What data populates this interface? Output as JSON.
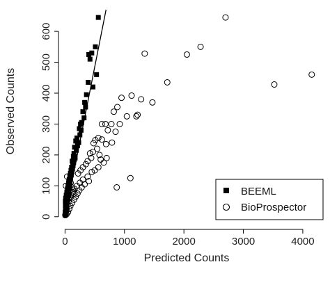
{
  "chart_data": {
    "type": "scatter",
    "title": "",
    "xlabel": "Predicted Counts",
    "ylabel": "Observed Counts",
    "xlim": [
      -40,
      4200
    ],
    "ylim": [
      -5,
      670
    ],
    "x_ticks": [
      0,
      1000,
      2000,
      3000,
      4000
    ],
    "y_ticks": [
      0,
      100,
      200,
      300,
      400,
      500,
      600
    ],
    "legend_position": "bottom-right",
    "grid": false,
    "fit_line": {
      "series": "BEEML",
      "x": [
        0,
        690
      ],
      "y": [
        0,
        670
      ]
    },
    "series": [
      {
        "name": "BEEML",
        "marker": "filled-square",
        "color": "#000000",
        "points": [
          [
            560,
            645
          ],
          [
            510,
            550
          ],
          [
            450,
            530
          ],
          [
            400,
            525
          ],
          [
            420,
            510
          ],
          [
            530,
            460
          ],
          [
            470,
            420
          ],
          [
            390,
            435
          ],
          [
            360,
            395
          ],
          [
            330,
            370
          ],
          [
            345,
            355
          ],
          [
            300,
            340
          ],
          [
            320,
            320
          ],
          [
            280,
            305
          ],
          [
            260,
            300
          ],
          [
            240,
            285
          ],
          [
            270,
            280
          ],
          [
            250,
            265
          ],
          [
            200,
            255
          ],
          [
            180,
            245
          ],
          [
            230,
            240
          ],
          [
            210,
            230
          ],
          [
            160,
            225
          ],
          [
            190,
            215
          ],
          [
            150,
            205
          ],
          [
            140,
            195
          ],
          [
            170,
            190
          ],
          [
            120,
            180
          ],
          [
            130,
            170
          ],
          [
            110,
            160
          ],
          [
            100,
            150
          ],
          [
            90,
            140
          ],
          [
            80,
            130
          ],
          [
            70,
            120
          ],
          [
            60,
            110
          ],
          [
            50,
            100
          ],
          [
            40,
            90
          ],
          [
            30,
            80
          ],
          [
            20,
            70
          ],
          [
            10,
            60
          ],
          [
            5,
            50
          ],
          [
            15,
            40
          ],
          [
            25,
            30
          ],
          [
            8,
            20
          ],
          [
            12,
            10
          ],
          [
            3,
            5
          ],
          [
            35,
            65
          ],
          [
            45,
            85
          ],
          [
            55,
            95
          ],
          [
            65,
            75
          ],
          [
            75,
            105
          ],
          [
            85,
            115
          ],
          [
            95,
            125
          ],
          [
            105,
            135
          ],
          [
            115,
            145
          ],
          [
            125,
            155
          ],
          [
            135,
            165
          ],
          [
            145,
            175
          ],
          [
            155,
            185
          ],
          [
            165,
            195
          ],
          [
            20,
            25
          ],
          [
            30,
            45
          ],
          [
            40,
            55
          ],
          [
            50,
            60
          ],
          [
            60,
            70
          ],
          [
            70,
            90
          ],
          [
            80,
            100
          ],
          [
            2,
            15
          ],
          [
            6,
            35
          ],
          [
            18,
            50
          ]
        ]
      },
      {
        "name": "BioProspector",
        "marker": "open-circle",
        "color": "#000000",
        "points": [
          [
            2700,
            645
          ],
          [
            2280,
            550
          ],
          [
            2050,
            525
          ],
          [
            1340,
            528
          ],
          [
            4150,
            460
          ],
          [
            3520,
            428
          ],
          [
            1720,
            435
          ],
          [
            1470,
            370
          ],
          [
            1280,
            380
          ],
          [
            1120,
            392
          ],
          [
            950,
            385
          ],
          [
            880,
            355
          ],
          [
            1220,
            330
          ],
          [
            1200,
            325
          ],
          [
            1040,
            325
          ],
          [
            820,
            340
          ],
          [
            920,
            300
          ],
          [
            780,
            300
          ],
          [
            680,
            300
          ],
          [
            620,
            300
          ],
          [
            560,
            255
          ],
          [
            620,
            250
          ],
          [
            510,
            248
          ],
          [
            480,
            238
          ],
          [
            720,
            280
          ],
          [
            850,
            275
          ],
          [
            790,
            240
          ],
          [
            690,
            235
          ],
          [
            540,
            220
          ],
          [
            470,
            210
          ],
          [
            420,
            205
          ],
          [
            580,
            200
          ],
          [
            650,
            175
          ],
          [
            600,
            185
          ],
          [
            440,
            190
          ],
          [
            380,
            180
          ],
          [
            350,
            170
          ],
          [
            300,
            160
          ],
          [
            260,
            150
          ],
          [
            220,
            140
          ],
          [
            500,
            150
          ],
          [
            380,
            130
          ],
          [
            300,
            120
          ],
          [
            250,
            110
          ],
          [
            200,
            100
          ],
          [
            160,
            90
          ],
          [
            130,
            80
          ],
          [
            100,
            70
          ],
          [
            80,
            60
          ],
          [
            60,
            50
          ],
          [
            40,
            40
          ],
          [
            30,
            30
          ],
          [
            20,
            20
          ],
          [
            10,
            10
          ],
          [
            5,
            5
          ],
          [
            1100,
            125
          ],
          [
            870,
            95
          ],
          [
            700,
            190
          ],
          [
            560,
            160
          ],
          [
            450,
            145
          ],
          [
            400,
            115
          ],
          [
            330,
            105
          ],
          [
            280,
            95
          ],
          [
            240,
            85
          ],
          [
            210,
            75
          ],
          [
            180,
            65
          ],
          [
            150,
            55
          ],
          [
            120,
            45
          ],
          [
            90,
            35
          ],
          [
            70,
            25
          ],
          [
            50,
            15
          ],
          [
            25,
            8
          ],
          [
            15,
            100
          ],
          [
            35,
            130
          ],
          [
            55,
            90
          ],
          [
            75,
            120
          ],
          [
            95,
            110
          ],
          [
            115,
            95
          ],
          [
            135,
            85
          ],
          [
            155,
            75
          ]
        ]
      }
    ]
  }
}
